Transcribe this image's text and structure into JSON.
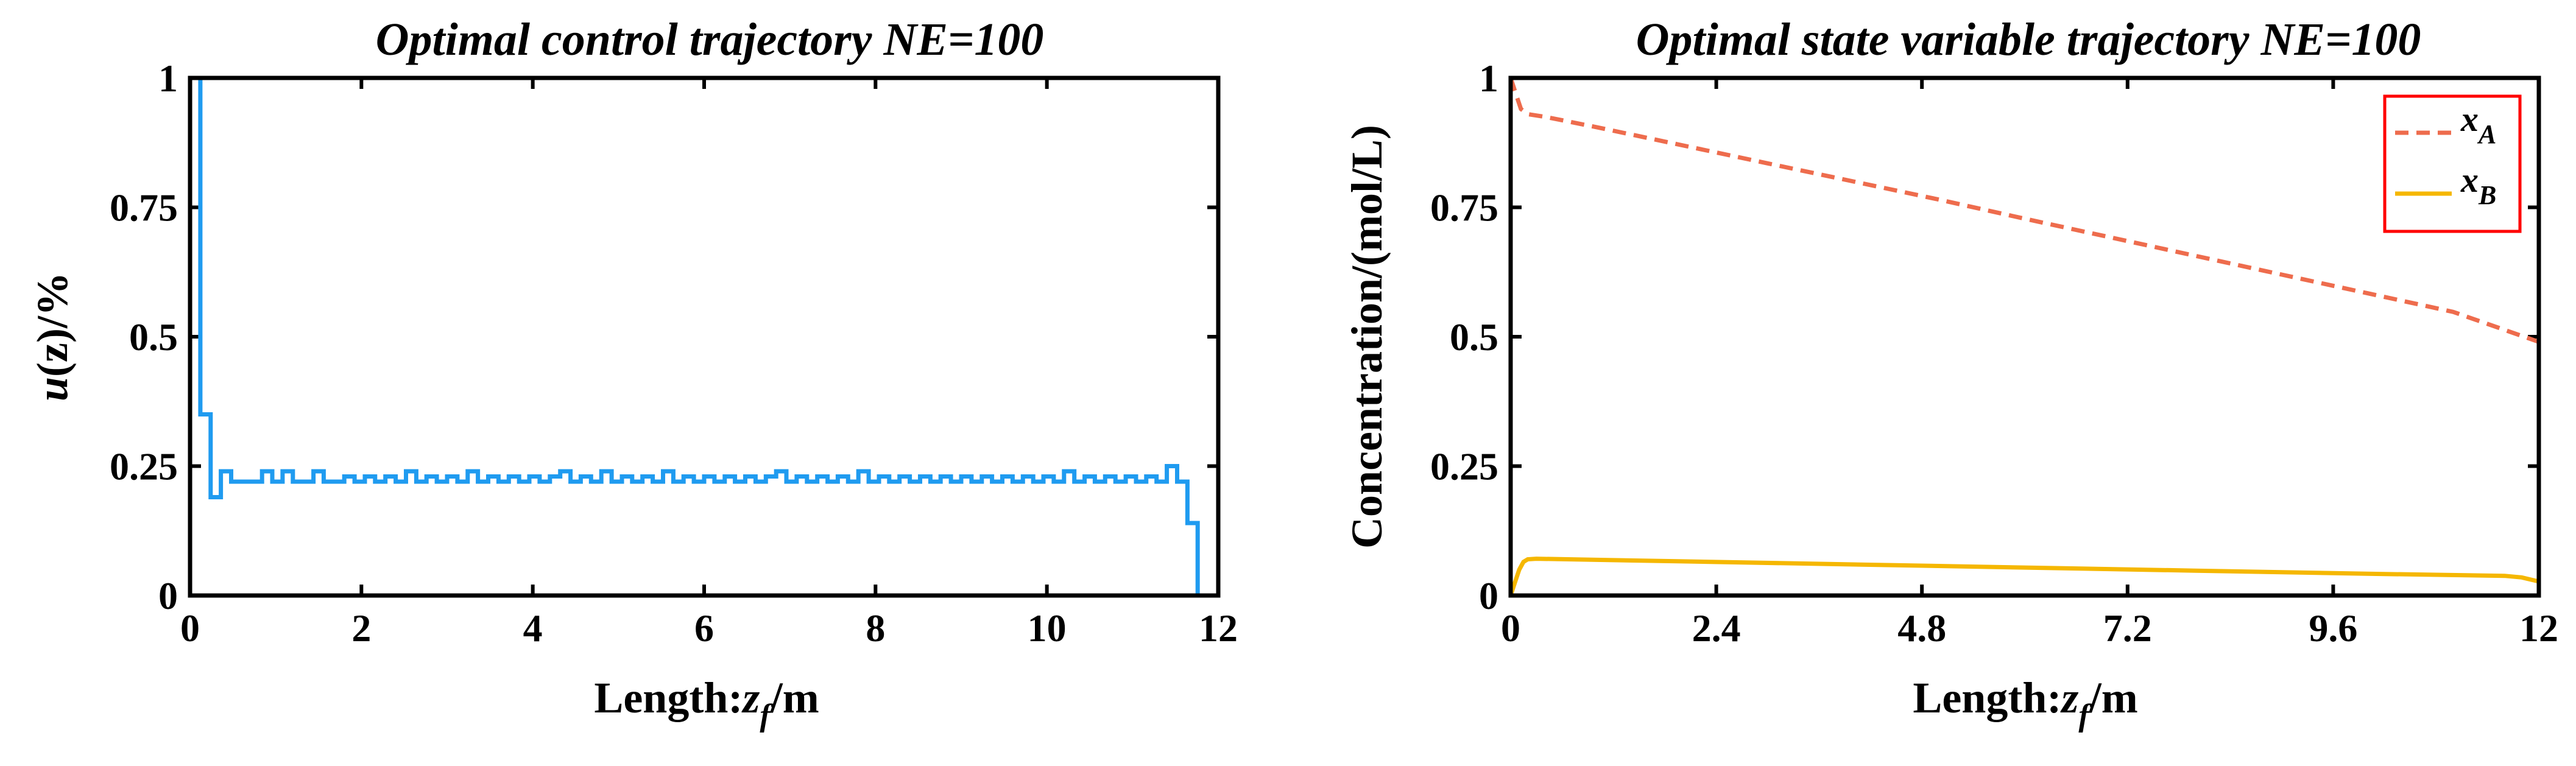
{
  "chart_data": [
    {
      "type": "line",
      "title": "Optimal control trajectory NE=100",
      "xlabel": "Length:z_f/m",
      "xlabel_parts": {
        "prefix": "Length:",
        "var": "z",
        "sub": "f",
        "suffix": "/m"
      },
      "ylabel": "u(z)/%",
      "ylabel_parts": {
        "var": "u",
        "rest": "(z)/%"
      },
      "xlim": [
        0,
        12
      ],
      "ylim": [
        0,
        1
      ],
      "xticks": [
        0,
        2,
        4,
        6,
        8,
        10,
        12
      ],
      "xtick_labels": [
        "0",
        "2",
        "4",
        "6",
        "8",
        "10",
        "12"
      ],
      "yticks": [
        0,
        0.25,
        0.5,
        0.75,
        1
      ],
      "ytick_labels": [
        "0",
        "0.25",
        "0.5",
        "0.75",
        "1"
      ],
      "grid": false,
      "series": [
        {
          "name": "u(z)",
          "color": "#1f9bf0",
          "style": "stairs",
          "x_start": 0,
          "step": 0.12,
          "values": [
            1,
            0.35,
            0.19,
            0.24,
            0.22,
            0.22,
            0.22,
            0.24,
            0.22,
            0.24,
            0.22,
            0.22,
            0.24,
            0.22,
            0.22,
            0.23,
            0.22,
            0.23,
            0.22,
            0.23,
            0.22,
            0.24,
            0.22,
            0.23,
            0.22,
            0.23,
            0.22,
            0.24,
            0.22,
            0.23,
            0.22,
            0.23,
            0.22,
            0.23,
            0.22,
            0.23,
            0.24,
            0.22,
            0.23,
            0.22,
            0.24,
            0.22,
            0.23,
            0.22,
            0.23,
            0.22,
            0.24,
            0.22,
            0.23,
            0.22,
            0.23,
            0.22,
            0.23,
            0.22,
            0.23,
            0.22,
            0.23,
            0.24,
            0.22,
            0.23,
            0.22,
            0.23,
            0.22,
            0.23,
            0.22,
            0.24,
            0.22,
            0.23,
            0.22,
            0.23,
            0.22,
            0.23,
            0.22,
            0.23,
            0.22,
            0.23,
            0.22,
            0.23,
            0.22,
            0.23,
            0.22,
            0.23,
            0.22,
            0.23,
            0.22,
            0.24,
            0.22,
            0.23,
            0.22,
            0.23,
            0.22,
            0.23,
            0.22,
            0.23,
            0.22,
            0.25,
            0.22,
            0.14,
            0,
            0
          ]
        }
      ]
    },
    {
      "type": "line",
      "title": "Optimal state variable trajectory NE=100",
      "xlabel": "Length:z_f/m",
      "xlabel_parts": {
        "prefix": "Length:",
        "var": "z",
        "sub": "f",
        "suffix": "/m"
      },
      "ylabel": "Concentration/(mol/L)",
      "xlim": [
        0,
        12
      ],
      "ylim": [
        0,
        1
      ],
      "xticks": [
        0,
        2.4,
        4.8,
        7.2,
        9.6,
        12
      ],
      "xtick_labels": [
        "0",
        "2.4",
        "4.8",
        "7.2",
        "9.6",
        "12"
      ],
      "yticks": [
        0,
        0.25,
        0.5,
        0.75,
        1
      ],
      "ytick_labels": [
        "0",
        "0.25",
        "0.5",
        "0.75",
        "1"
      ],
      "grid": false,
      "legend": {
        "location": "top-right",
        "border_color": "#ff0000"
      },
      "series": [
        {
          "name": "x_A",
          "name_parts": {
            "var": "x",
            "sub": "A"
          },
          "color": "#ee6c4d",
          "style": "dashed",
          "x": [
            0,
            0.05,
            0.12,
            0.2,
            0.4,
            1,
            2,
            3,
            4,
            5,
            6,
            7,
            8,
            9,
            10,
            11,
            12
          ],
          "y": [
            1,
            0.975,
            0.94,
            0.93,
            0.925,
            0.905,
            0.87,
            0.835,
            0.8,
            0.765,
            0.728,
            0.692,
            0.656,
            0.62,
            0.584,
            0.548,
            0.49
          ]
        },
        {
          "name": "x_B",
          "name_parts": {
            "var": "x",
            "sub": "B"
          },
          "color": "#f5b700",
          "style": "solid",
          "x": [
            0,
            0.05,
            0.1,
            0.15,
            0.2,
            0.3,
            1,
            2,
            4,
            6,
            8,
            10,
            11.6,
            11.8,
            12
          ],
          "y": [
            0,
            0.025,
            0.05,
            0.065,
            0.07,
            0.071,
            0.069,
            0.066,
            0.06,
            0.054,
            0.048,
            0.042,
            0.038,
            0.035,
            0.027
          ]
        }
      ]
    }
  ]
}
